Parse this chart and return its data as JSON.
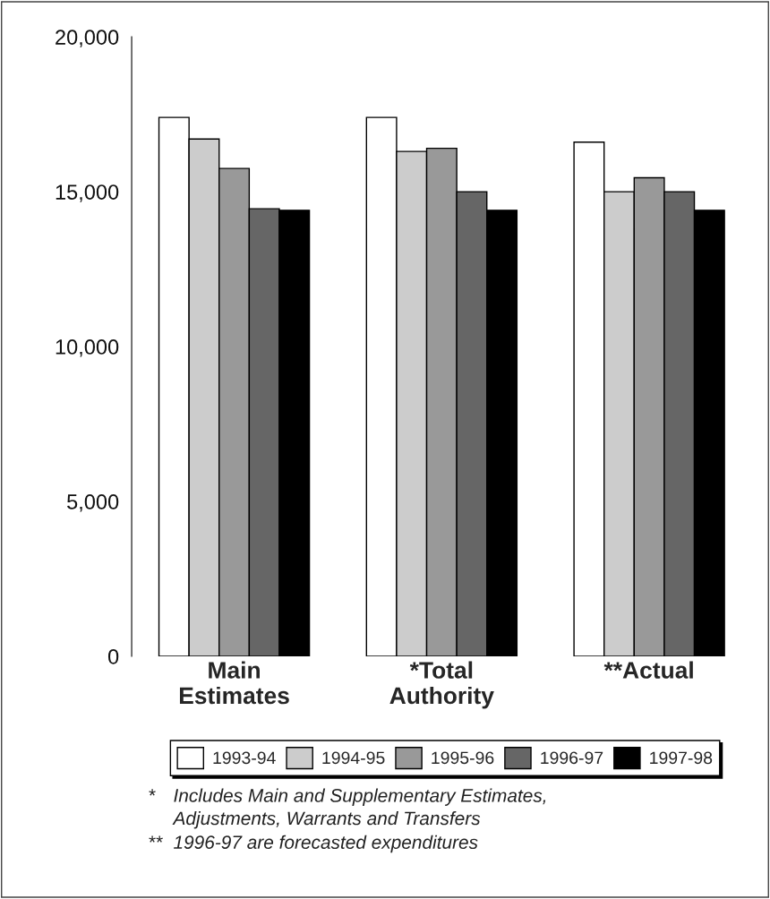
{
  "chart_data": {
    "type": "bar",
    "categories": [
      "Main\nEstimates",
      "*Total\nAuthority",
      "**Actual"
    ],
    "series": [
      {
        "name": "1993-94",
        "color": "#ffffff",
        "values": [
          17400,
          17400,
          16600
        ]
      },
      {
        "name": "1994-95",
        "color": "#cccccc",
        "values": [
          16700,
          16300,
          15000
        ]
      },
      {
        "name": "1995-96",
        "color": "#999999",
        "values": [
          15750,
          16400,
          15450
        ]
      },
      {
        "name": "1996-97",
        "color": "#666666",
        "values": [
          14450,
          15000,
          15000
        ]
      },
      {
        "name": "1997-98",
        "color": "#000000",
        "values": [
          14400,
          14400,
          14400
        ]
      }
    ],
    "ylim": [
      0,
      20000
    ],
    "yticks": [
      {
        "value": 0,
        "label": "0"
      },
      {
        "value": 5000,
        "label": "5,000"
      },
      {
        "value": 10000,
        "label": "10,000"
      },
      {
        "value": 15000,
        "label": "15,000"
      },
      {
        "value": 20000,
        "label": "20,000"
      }
    ],
    "grid": false,
    "legend": "bottom",
    "annotations": [
      "*",
      "Includes Main and Supplementary Estimates,\nAdjustments, Warrants and Transfers",
      "**",
      "1996-97 are forecasted expenditures"
    ]
  }
}
